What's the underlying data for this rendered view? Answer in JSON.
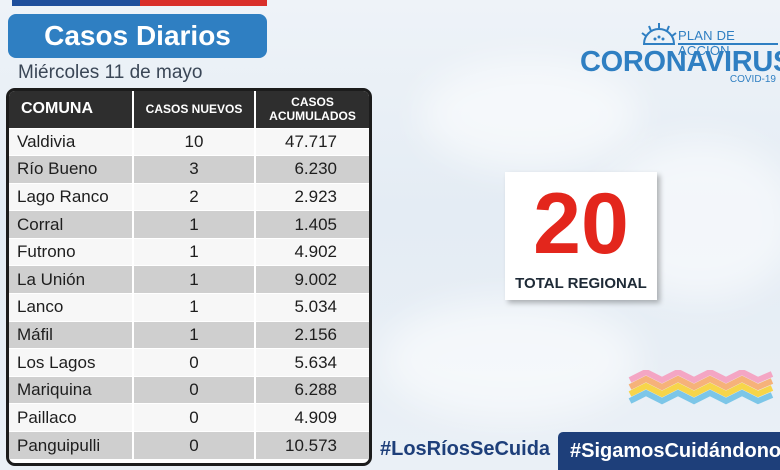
{
  "header": {
    "title": "Casos Diarios",
    "date": "Miércoles 11 de mayo"
  },
  "logo": {
    "plan": "PLAN DE ACCIÓN",
    "name": "CORONAVIRUS",
    "sub": "COVID-19",
    "icon": "sun-icon"
  },
  "table": {
    "headers": [
      "COMUNA",
      "CASOS NUEVOS",
      "CASOS ACUMULADOS"
    ],
    "rows": [
      {
        "comuna": "Valdivia",
        "nuevos": "10",
        "acumulados": "47.717"
      },
      {
        "comuna": "Río Bueno",
        "nuevos": "3",
        "acumulados": "6.230"
      },
      {
        "comuna": "Lago Ranco",
        "nuevos": "2",
        "acumulados": "2.923"
      },
      {
        "comuna": "Corral",
        "nuevos": "1",
        "acumulados": "1.405"
      },
      {
        "comuna": "Futrono",
        "nuevos": "1",
        "acumulados": "4.902"
      },
      {
        "comuna": "La Unión",
        "nuevos": "1",
        "acumulados": "9.002"
      },
      {
        "comuna": "Lanco",
        "nuevos": "1",
        "acumulados": "5.034"
      },
      {
        "comuna": "Máfil",
        "nuevos": "1",
        "acumulados": "2.156"
      },
      {
        "comuna": "Los Lagos",
        "nuevos": "0",
        "acumulados": "5.634"
      },
      {
        "comuna": "Mariquina",
        "nuevos": "0",
        "acumulados": "6.288"
      },
      {
        "comuna": "Paillaco",
        "nuevos": "0",
        "acumulados": "4.909"
      },
      {
        "comuna": "Panguipulli",
        "nuevos": "0",
        "acumulados": "10.573"
      }
    ]
  },
  "total": {
    "value": "20",
    "label": "TOTAL REGIONAL"
  },
  "hashtags": {
    "primary": "#LosRíosSeCuida",
    "secondary": "#SigamosCuidándonos"
  },
  "colors": {
    "accent_blue": "#2f7fc2",
    "dark_blue": "#1e3f7a",
    "total_red": "#e3261c",
    "flag_blue": "#1f4f9c",
    "flag_red": "#d92f2a"
  }
}
